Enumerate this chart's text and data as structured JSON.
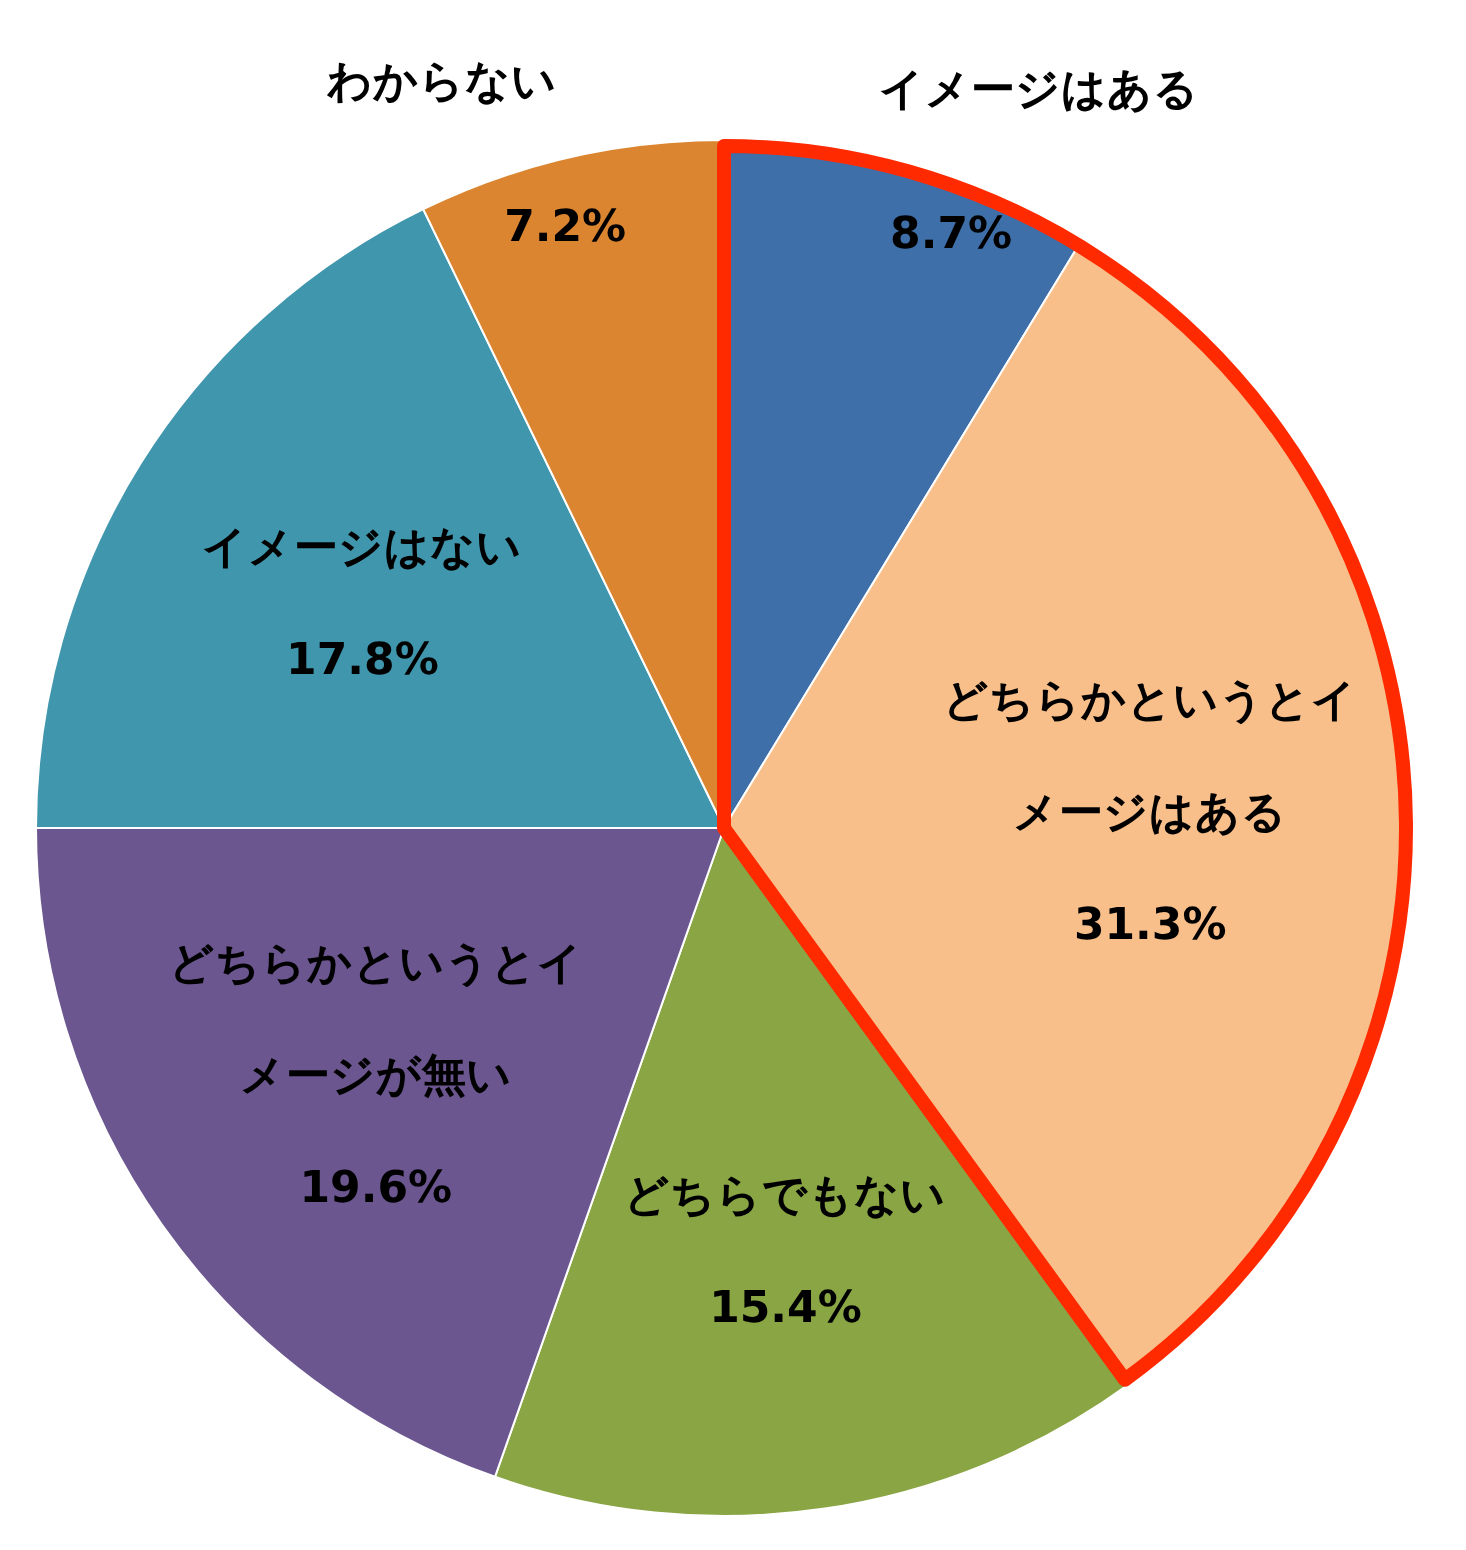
{
  "chart_data": {
    "type": "pie",
    "categories": [
      "イメージはある",
      "どちらかというとイメージはある",
      "どちらでもない",
      "どちらかというとイメージが無い",
      "イメージはない",
      "わからない"
    ],
    "values": [
      8.7,
      31.3,
      15.4,
      19.6,
      17.8,
      7.2
    ],
    "value_labels": [
      "8.7%",
      "31.3%",
      "15.4%",
      "19.6%",
      "17.8%",
      "7.2%"
    ],
    "colors": [
      "#3f6fa8",
      "#f8bf8a",
      "#8aa544",
      "#6b5690",
      "#4096ad",
      "#db8530"
    ]
  }
}
